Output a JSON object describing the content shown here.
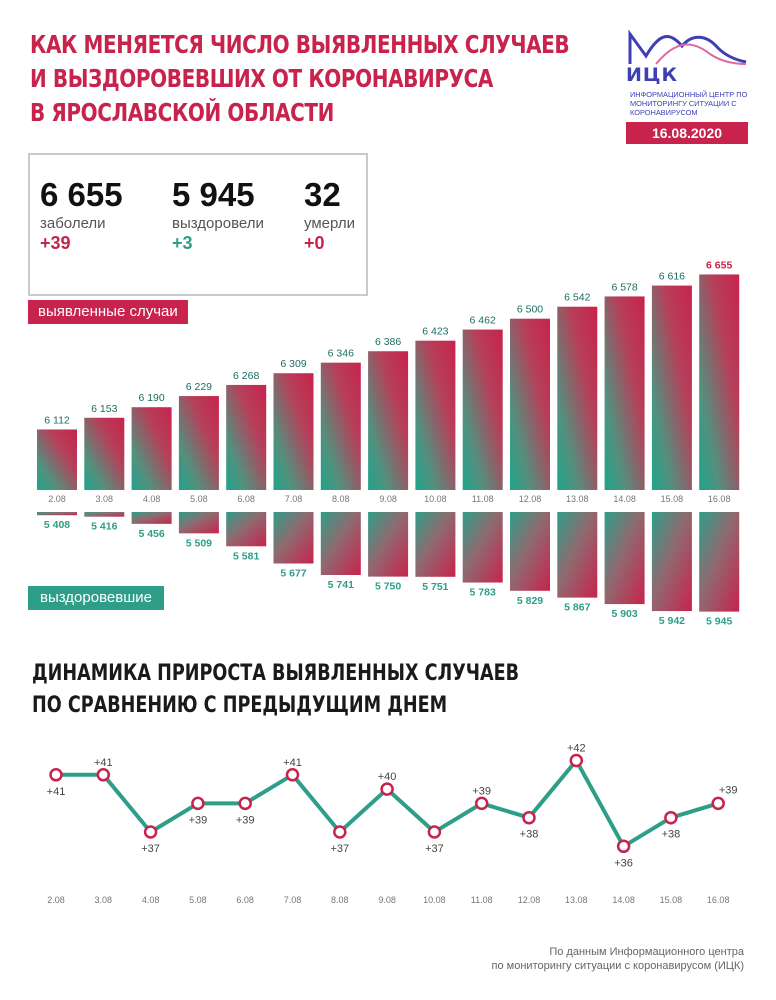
{
  "title": {
    "line1": "КАК МЕНЯЕТСЯ ЧИСЛО ВЫЯВЛЕННЫХ СЛУЧАЕВ",
    "line2": "И ВЫЗДОРОВЕВШИХ ОТ КОРОНАВИРУСА",
    "line3": "В ЯРОСЛАВСКОЙ ОБЛАСТИ"
  },
  "logo": {
    "name": "ИЦК",
    "subtitle": "ИНФОРМАЦИОННЫЙ ЦЕНТР ПО МОНИТОРИНГУ СИТУАЦИИ С КОРОНАВИРУСОМ",
    "date": "16.08.2020"
  },
  "stats": {
    "cases": {
      "value": "6 655",
      "label": "заболели",
      "delta": "+39"
    },
    "recovered": {
      "value": "5 945",
      "label": "выздоровели",
      "delta": "+3"
    },
    "deaths": {
      "value": "32",
      "label": "умерли",
      "delta": "+0"
    }
  },
  "labels": {
    "cases": "выявленные случаи",
    "recovered": "выздоровевшие"
  },
  "colors": {
    "red": "#c8234c",
    "green": "#2e9e88",
    "line": "#2e9e88"
  },
  "subtitle": {
    "line1": "ДИНАМИКА ПРИРОСТА ВЫЯВЛЕННЫХ СЛУЧАЕВ",
    "line2": "ПО СРАВНЕНИЮ С ПРЕДЫДУЩИМ ДНЕМ"
  },
  "source": {
    "line1": "По данным Информационного центра",
    "line2": "по мониторингу ситуации с коронавирусом (ИЦК)"
  },
  "chart_data": [
    {
      "type": "bar",
      "categories": [
        "2.08",
        "3.08",
        "4.08",
        "5.08",
        "6.08",
        "7.08",
        "8.08",
        "9.08",
        "10.08",
        "11.08",
        "12.08",
        "13.08",
        "14.08",
        "15.08",
        "16.08"
      ],
      "series": [
        {
          "name": "выявленные случаи",
          "values": [
            6112,
            6153,
            6190,
            6229,
            6268,
            6309,
            6346,
            6386,
            6423,
            6462,
            6500,
            6542,
            6578,
            6616,
            6655
          ],
          "labels": [
            "6 112",
            "6 153",
            "6 190",
            "6 229",
            "6 268",
            "6 309",
            "6 346",
            "6 386",
            "6 423",
            "6 462",
            "6 500",
            "6 542",
            "6 578",
            "6 616",
            "6 655"
          ]
        },
        {
          "name": "выздоровевшие",
          "values": [
            5408,
            5416,
            5456,
            5509,
            5581,
            5677,
            5741,
            5750,
            5751,
            5783,
            5829,
            5867,
            5903,
            5942,
            5945
          ],
          "labels": [
            "5 408",
            "5 416",
            "5 456",
            "5 509",
            "5 581",
            "5 677",
            "5 741",
            "5 750",
            "5 751",
            "5 783",
            "5 829",
            "5 867",
            "5 903",
            "5 942",
            "5 945"
          ]
        }
      ]
    },
    {
      "type": "line",
      "categories": [
        "2.08",
        "3.08",
        "4.08",
        "5.08",
        "6.08",
        "7.08",
        "8.08",
        "9.08",
        "10.08",
        "11.08",
        "12.08",
        "13.08",
        "14.08",
        "15.08",
        "16.08"
      ],
      "values": [
        41,
        41,
        37,
        39,
        39,
        41,
        37,
        40,
        37,
        39,
        38,
        42,
        36,
        38,
        39
      ],
      "labels": [
        "+41",
        "+41",
        "+37",
        "+39",
        "+39",
        "+41",
        "+37",
        "+40",
        "+37",
        "+39",
        "+38",
        "+42",
        "+36",
        "+38",
        "+39"
      ]
    }
  ]
}
